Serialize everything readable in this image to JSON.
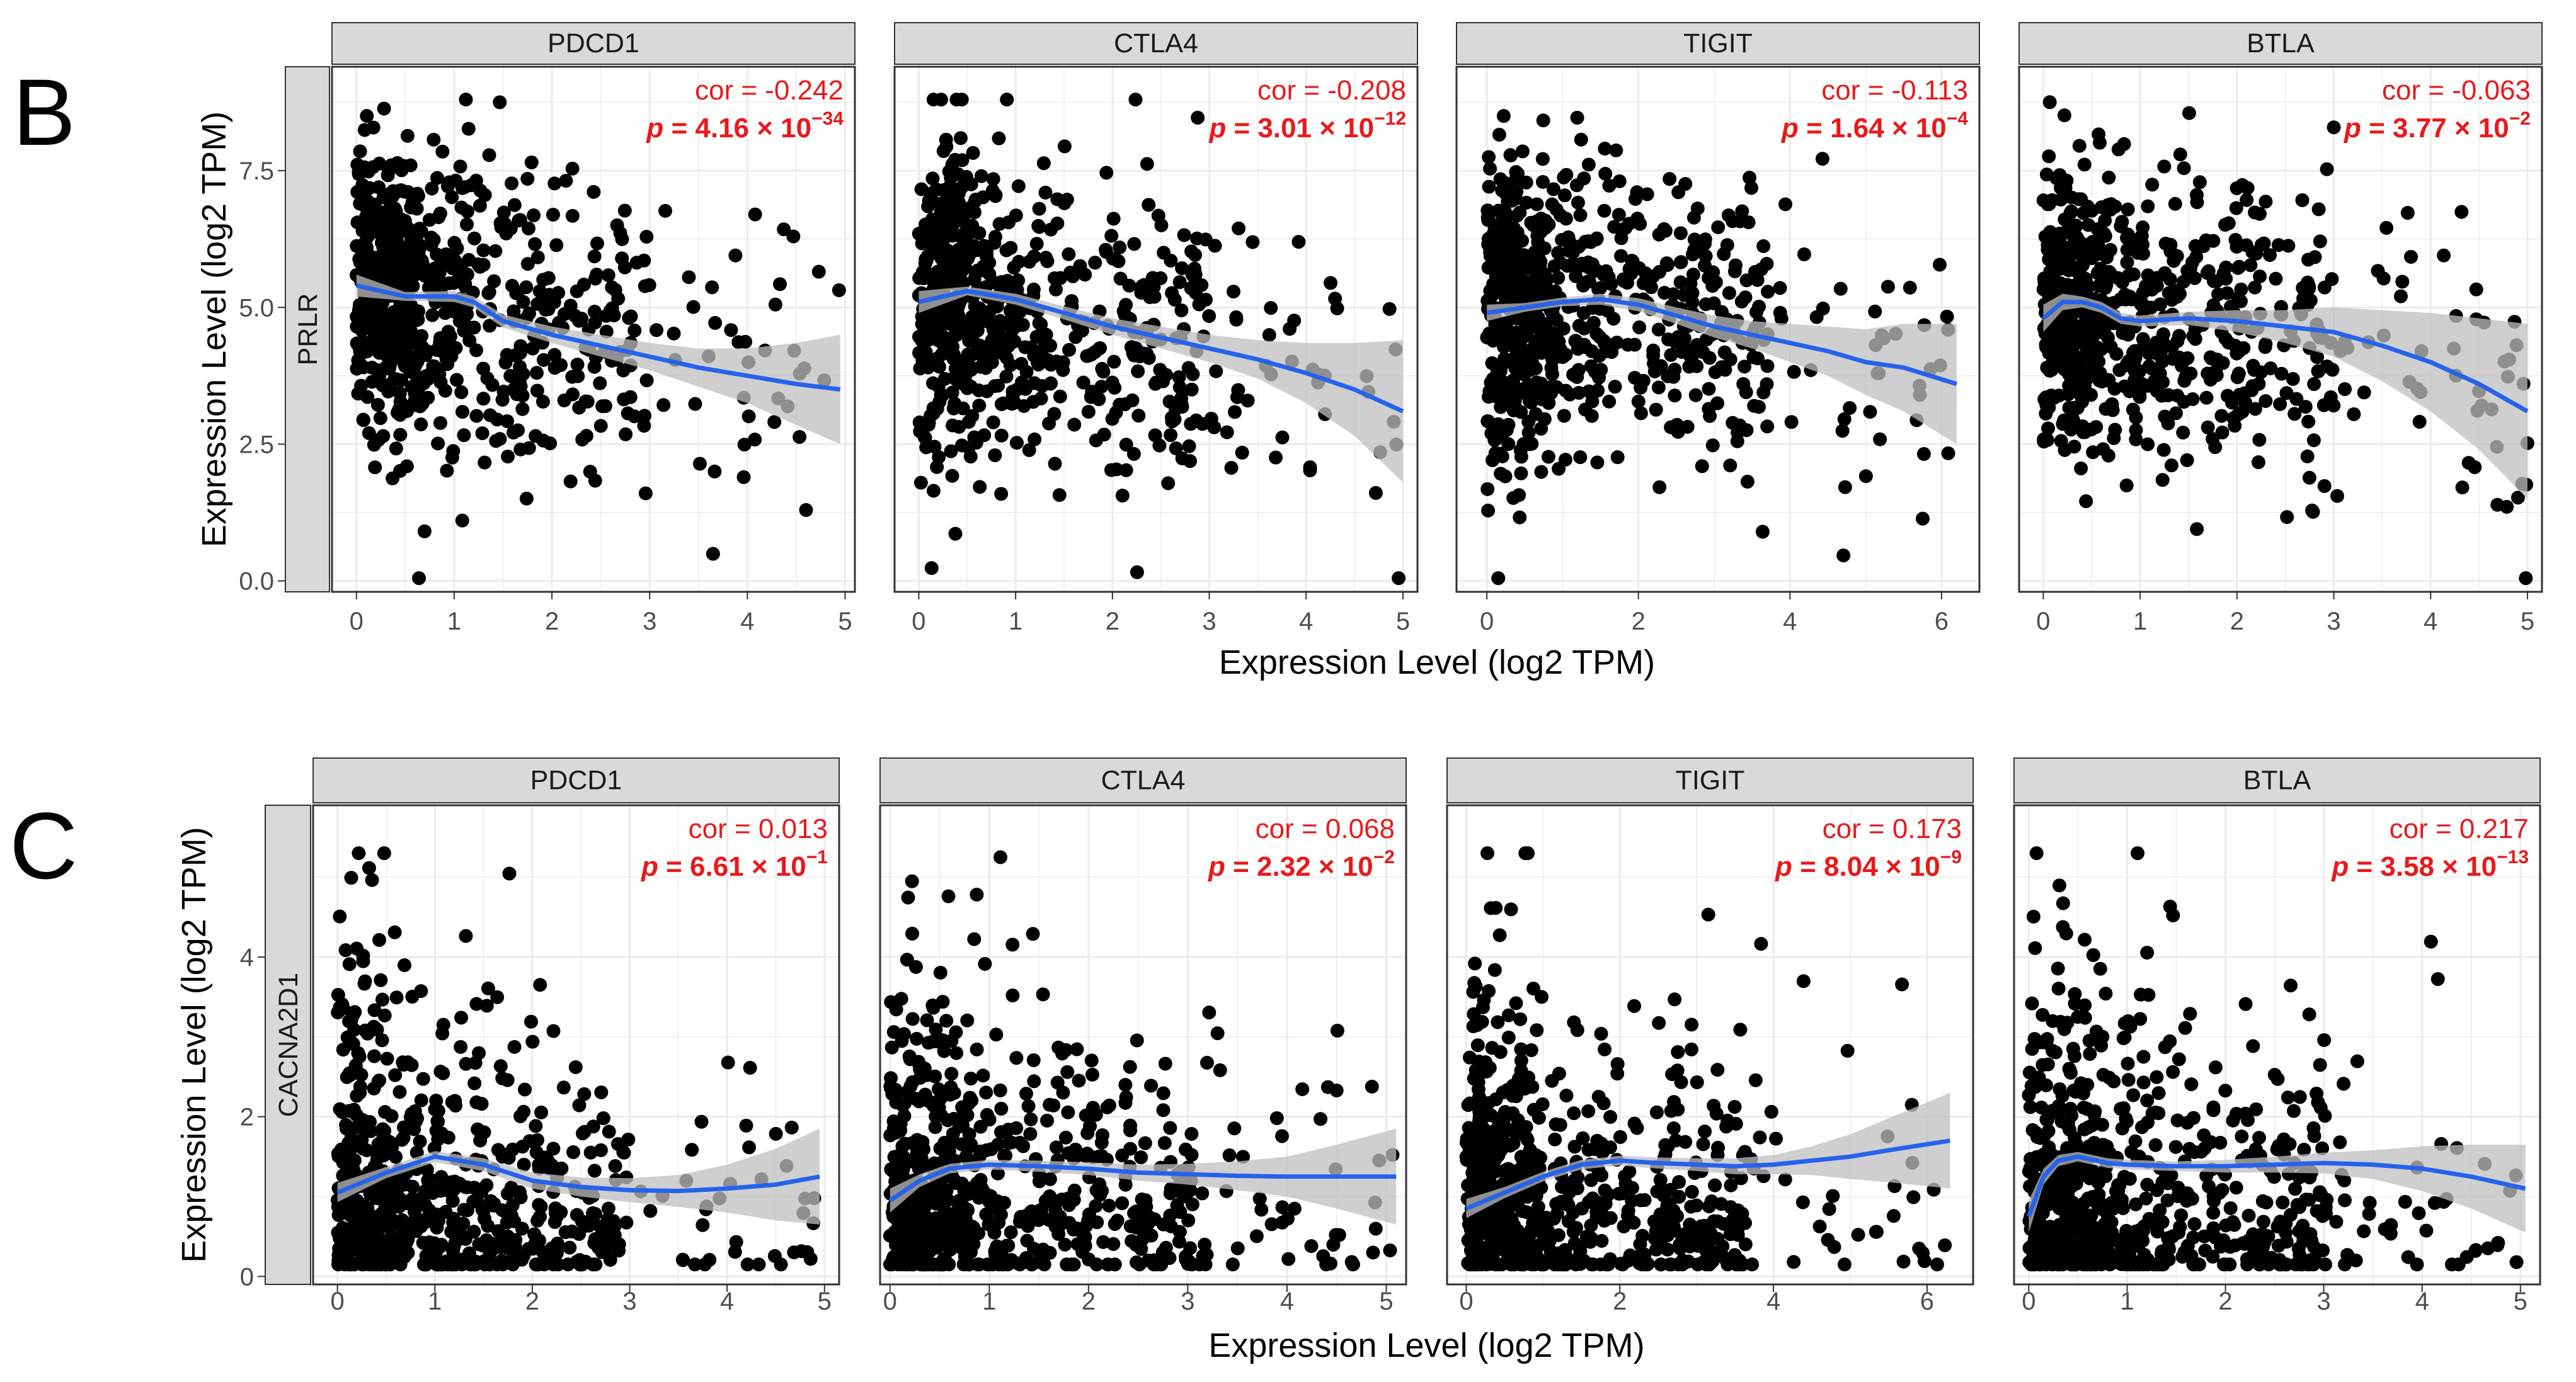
{
  "colors": {
    "point": "#000000",
    "smooth": "#2563eb",
    "band": "#bfbfbf",
    "annotation": "#e8191b",
    "strip": "#d9d9d9",
    "grid": "#ebebeb"
  },
  "chart_data": [
    {
      "type": "scatter",
      "panel_label": "B",
      "row_strip": "PRLR",
      "ylabel": "Expression Level (log2 TPM)",
      "xlabel": "Expression Level (log2 TPM)",
      "ylim": [
        -0.2,
        9.4
      ],
      "yticks": [
        0.0,
        2.5,
        5.0,
        7.5
      ],
      "ytick_labels": [
        "0.0",
        "2.5",
        "5.0",
        "7.5"
      ],
      "facets": [
        {
          "gene": "PDCD1",
          "cor": "cor = -0.242",
          "p_mantissa": "4.16",
          "p_exp": "−34",
          "xlim": [
            -0.25,
            5.1
          ],
          "xticks": [
            0,
            1,
            2,
            3,
            4,
            5
          ],
          "max_x": 4.95,
          "smooth_x": [
            0,
            0.5,
            1.0,
            1.2,
            1.5,
            2.0,
            2.5,
            3.0,
            3.5,
            4.0,
            4.5,
            4.95
          ],
          "smooth_y": [
            5.4,
            5.2,
            5.2,
            5.1,
            4.75,
            4.5,
            4.3,
            4.1,
            3.9,
            3.75,
            3.6,
            3.5
          ],
          "band_halfwidth": [
            0.2,
            0.08,
            0.1,
            0.1,
            0.12,
            0.15,
            0.2,
            0.25,
            0.35,
            0.5,
            0.75,
            1.0
          ]
        },
        {
          "gene": "CTLA4",
          "cor": "cor = -0.208",
          "p_mantissa": "3.01",
          "p_exp": "−12",
          "xlim": [
            -0.25,
            5.15
          ],
          "xticks": [
            0,
            1,
            2,
            3,
            4,
            5
          ],
          "max_x": 5.0,
          "smooth_x": [
            0,
            0.5,
            1.0,
            1.5,
            2.0,
            2.5,
            3.0,
            3.5,
            4.0,
            4.5,
            5.0
          ],
          "smooth_y": [
            5.1,
            5.3,
            5.15,
            4.9,
            4.65,
            4.45,
            4.25,
            4.05,
            3.8,
            3.5,
            3.1
          ],
          "band_halfwidth": [
            0.2,
            0.08,
            0.1,
            0.12,
            0.15,
            0.2,
            0.25,
            0.35,
            0.55,
            0.85,
            1.3
          ]
        },
        {
          "gene": "TIGIT",
          "cor": "cor = -0.113",
          "p_mantissa": "1.64",
          "p_exp": "−4",
          "xlim": [
            -0.4,
            6.5
          ],
          "xticks": [
            0,
            2,
            4,
            6
          ],
          "max_x": 6.2,
          "smooth_x": [
            0,
            0.5,
            1.0,
            1.5,
            2.0,
            2.5,
            3.0,
            3.5,
            4.0,
            4.5,
            5.0,
            5.5,
            6.2
          ],
          "smooth_y": [
            4.9,
            5.0,
            5.1,
            5.15,
            5.05,
            4.85,
            4.65,
            4.5,
            4.35,
            4.2,
            4.0,
            3.9,
            3.6
          ],
          "band_halfwidth": [
            0.15,
            0.08,
            0.08,
            0.1,
            0.12,
            0.15,
            0.2,
            0.25,
            0.35,
            0.45,
            0.6,
            0.8,
            1.1
          ]
        },
        {
          "gene": "BTLA",
          "cor": "cor = -0.063",
          "p_mantissa": "3.77",
          "p_exp": "−2",
          "xlim": [
            -0.25,
            5.15
          ],
          "xticks": [
            0,
            1,
            2,
            3,
            4,
            5
          ],
          "max_x": 5.0,
          "smooth_x": [
            0,
            0.2,
            0.4,
            0.6,
            0.8,
            1.0,
            1.5,
            2.0,
            2.5,
            3.0,
            3.5,
            4.0,
            4.5,
            5.0
          ],
          "smooth_y": [
            4.8,
            5.1,
            5.1,
            5.0,
            4.8,
            4.75,
            4.8,
            4.75,
            4.65,
            4.55,
            4.3,
            4.0,
            3.6,
            3.1
          ],
          "band_halfwidth": [
            0.25,
            0.15,
            0.1,
            0.1,
            0.1,
            0.1,
            0.12,
            0.2,
            0.3,
            0.45,
            0.65,
            0.9,
            1.2,
            1.6
          ]
        }
      ]
    },
    {
      "type": "scatter",
      "panel_label": "C",
      "row_strip": "CACNA2D1",
      "ylabel": "Expression Level (log2 TPM)",
      "xlabel": "Expression Level (log2 TPM)",
      "ylim": [
        -0.1,
        5.9
      ],
      "yticks": [
        0,
        2,
        4
      ],
      "ytick_labels": [
        "0",
        "2",
        "4"
      ],
      "facets": [
        {
          "gene": "PDCD1",
          "cor": "cor = 0.013",
          "p_mantissa": "6.61",
          "p_exp": "−1",
          "xlim": [
            -0.25,
            5.15
          ],
          "xticks": [
            0,
            1,
            2,
            3,
            4,
            5
          ],
          "max_x": 4.95,
          "smooth_x": [
            0,
            0.5,
            1.0,
            1.5,
            2.0,
            2.5,
            3.0,
            3.5,
            4.0,
            4.5,
            4.95
          ],
          "smooth_y": [
            1.05,
            1.3,
            1.5,
            1.4,
            1.2,
            1.12,
            1.08,
            1.07,
            1.1,
            1.15,
            1.25
          ],
          "band_halfwidth": [
            0.12,
            0.07,
            0.07,
            0.08,
            0.1,
            0.12,
            0.15,
            0.2,
            0.3,
            0.45,
            0.6
          ]
        },
        {
          "gene": "CTLA4",
          "cor": "cor = 0.068",
          "p_mantissa": "2.32",
          "p_exp": "−2",
          "xlim": [
            -0.1,
            5.2
          ],
          "xticks": [
            0,
            1,
            2,
            3,
            4,
            5
          ],
          "max_x": 5.1,
          "smooth_x": [
            0,
            0.3,
            0.6,
            1.0,
            1.5,
            2.0,
            2.5,
            3.0,
            3.5,
            4.0,
            4.5,
            5.1
          ],
          "smooth_y": [
            0.95,
            1.2,
            1.35,
            1.4,
            1.38,
            1.35,
            1.3,
            1.28,
            1.26,
            1.25,
            1.25,
            1.25
          ],
          "band_halfwidth": [
            0.15,
            0.08,
            0.06,
            0.06,
            0.07,
            0.08,
            0.1,
            0.13,
            0.18,
            0.25,
            0.4,
            0.6
          ]
        },
        {
          "gene": "TIGIT",
          "cor": "cor = 0.173",
          "p_mantissa": "8.04",
          "p_exp": "−9",
          "xlim": [
            -0.25,
            6.6
          ],
          "xticks": [
            0,
            2,
            4,
            6
          ],
          "max_x": 6.3,
          "smooth_x": [
            0,
            0.5,
            1.0,
            1.5,
            2.0,
            2.5,
            3.0,
            3.5,
            4.0,
            4.5,
            5.0,
            5.5,
            6.3
          ],
          "smooth_y": [
            0.85,
            1.05,
            1.25,
            1.4,
            1.45,
            1.42,
            1.4,
            1.38,
            1.4,
            1.45,
            1.5,
            1.58,
            1.7
          ],
          "band_halfwidth": [
            0.12,
            0.07,
            0.06,
            0.06,
            0.06,
            0.07,
            0.08,
            0.1,
            0.12,
            0.18,
            0.28,
            0.4,
            0.6
          ]
        },
        {
          "gene": "BTLA",
          "cor": "cor = 0.217",
          "p_mantissa": "3.58",
          "p_exp": "−13",
          "xlim": [
            -0.15,
            5.2
          ],
          "xticks": [
            0,
            1,
            2,
            3,
            4,
            5
          ],
          "max_x": 5.05,
          "smooth_x": [
            0,
            0.15,
            0.3,
            0.5,
            0.8,
            1.0,
            1.5,
            2.0,
            2.5,
            3.0,
            3.5,
            4.0,
            4.5,
            5.05
          ],
          "smooth_y": [
            0.75,
            1.25,
            1.45,
            1.5,
            1.42,
            1.4,
            1.38,
            1.38,
            1.4,
            1.42,
            1.4,
            1.35,
            1.25,
            1.1
          ],
          "band_halfwidth": [
            0.2,
            0.1,
            0.07,
            0.06,
            0.06,
            0.06,
            0.06,
            0.08,
            0.1,
            0.13,
            0.18,
            0.28,
            0.4,
            0.55
          ]
        }
      ]
    }
  ]
}
